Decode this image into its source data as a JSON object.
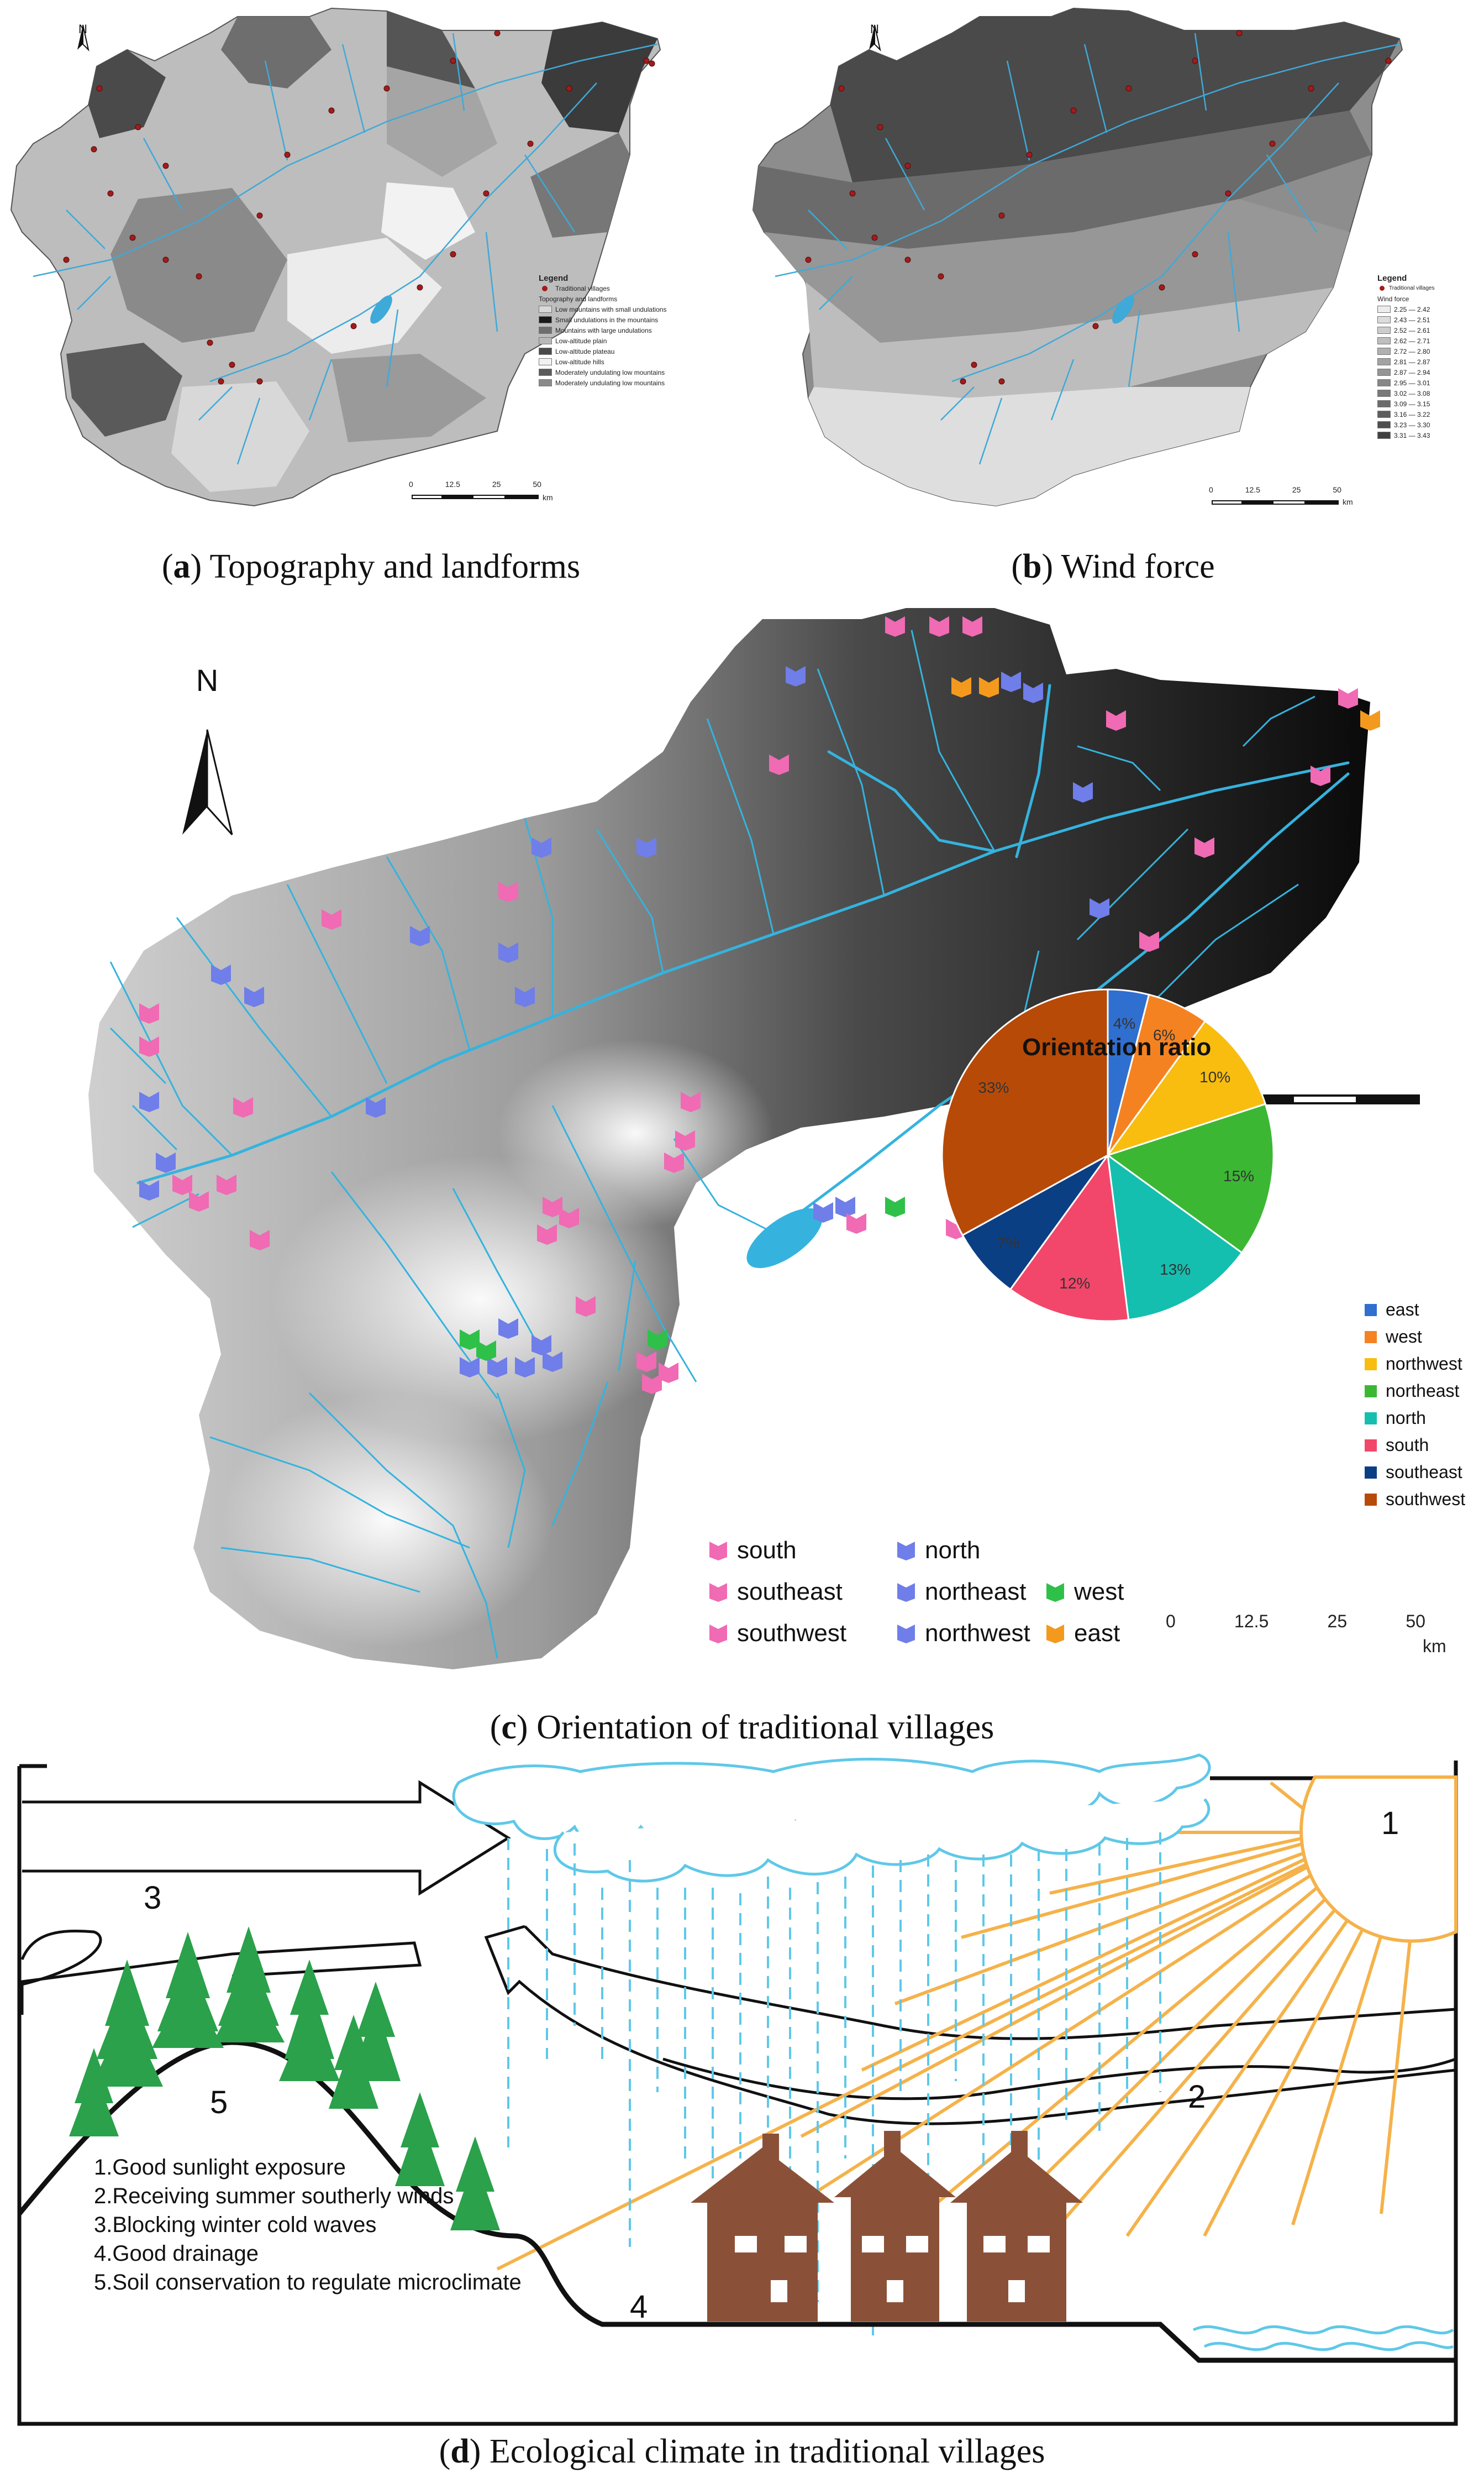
{
  "captions": {
    "a_letter": "a",
    "a_text": " Topography and landforms",
    "b_letter": "b",
    "b_text": " Wind force",
    "c_letter": "c",
    "c_text": " Orientation of traditional villages",
    "d_letter": "d",
    "d_text": " Ecological climate in traditional villages"
  },
  "north": "N",
  "panel_a": {
    "legend_title": "Legend",
    "villages_label": "Traditional villages",
    "category_title": "Topography and landforms",
    "items": [
      {
        "label": "Low mountains with small undulations",
        "color": "#d8d8d8"
      },
      {
        "label": "Small undulations in the mountains",
        "color": "#1a1a1a"
      },
      {
        "label": "Mountains with large undulations",
        "color": "#6e6e6e"
      },
      {
        "label": "Low-altitude plain",
        "color": "#b8b8b8"
      },
      {
        "label": "Low-altitude plateau",
        "color": "#4a4a4a"
      },
      {
        "label": "Low-altitude hills",
        "color": "#f2f2f2"
      },
      {
        "label": "Moderately undulating low mountains",
        "color": "#5a5a5a"
      },
      {
        "label": "Moderately undulating low mountains",
        "color": "#8a8a8a"
      }
    ],
    "scale": [
      "0",
      "12.5",
      "25",
      "50"
    ],
    "scale_unit": "km"
  },
  "panel_b": {
    "legend_title": "Legend",
    "villages_label": "Traditional villages",
    "category_title": "Wind  force",
    "items": [
      {
        "label": "2.25 — 2.42",
        "color": "#ececec"
      },
      {
        "label": "2.43 — 2.51",
        "color": "#dcdcdc"
      },
      {
        "label": "2.52 — 2.61",
        "color": "#cdcdcd"
      },
      {
        "label": "2.62 — 2.71",
        "color": "#bfbfbf"
      },
      {
        "label": "2.72 — 2.80",
        "color": "#b1b1b1"
      },
      {
        "label": "2.81 — 2.87",
        "color": "#a3a3a3"
      },
      {
        "label": "2.87 — 2.94",
        "color": "#959595"
      },
      {
        "label": "2.95 — 3.01",
        "color": "#878787"
      },
      {
        "label": "3.02 — 3.08",
        "color": "#797979"
      },
      {
        "label": "3.09 — 3.15",
        "color": "#6b6b6b"
      },
      {
        "label": "3.16 — 3.22",
        "color": "#5d5d5d"
      },
      {
        "label": "3.23 — 3.30",
        "color": "#4f4f4f"
      },
      {
        "label": "3.31 — 3.43",
        "color": "#414141"
      }
    ],
    "scale": [
      "0",
      "12.5",
      "25",
      "50"
    ],
    "scale_unit": "km"
  },
  "panel_c": {
    "scale": [
      "0",
      "12.5",
      "25",
      "50"
    ],
    "scale_unit": "km",
    "orientation_legend": [
      {
        "label": "south",
        "color": "#f06ab4"
      },
      {
        "label": "north",
        "color": "#6f7ee8"
      },
      {
        "label": "southeast",
        "color": "#f06ab4"
      },
      {
        "label": "northeast",
        "color": "#6f7ee8"
      },
      {
        "label": "west",
        "color": "#2fc04a"
      },
      {
        "label": "southwest",
        "color": "#f06ab4"
      },
      {
        "label": "northwest",
        "color": "#6f7ee8"
      },
      {
        "label": "east",
        "color": "#f39a1e"
      }
    ]
  },
  "chart_data": {
    "type": "pie",
    "title": "Orientation ratio",
    "slices": [
      {
        "label": "east",
        "value": 4,
        "display": "4%",
        "color": "#2f6fd0"
      },
      {
        "label": "west",
        "value": 6,
        "display": "6%",
        "color": "#f58220"
      },
      {
        "label": "northwest",
        "value": 10,
        "display": "10%",
        "color": "#f8bd0f"
      },
      {
        "label": "northeast",
        "value": 15,
        "display": "15%",
        "color": "#3cb734"
      },
      {
        "label": "north",
        "value": 13,
        "display": "13%",
        "color": "#14bfb0"
      },
      {
        "label": "south",
        "value": 12,
        "display": "12%",
        "color": "#f2476a"
      },
      {
        "label": "southeast",
        "value": 7,
        "display": "7%",
        "color": "#0b3f84"
      },
      {
        "label": "southwest",
        "value": 33,
        "display": "33%",
        "color": "#b84a08"
      }
    ]
  },
  "panel_d": {
    "numbers": [
      "1",
      "2",
      "3",
      "4",
      "5"
    ],
    "list": [
      "1.Good sunlight exposure",
      "2.Receiving summer southerly winds",
      "3.Blocking winter cold waves",
      "4.Good drainage",
      "5.Soil conservation to regulate microclimate"
    ],
    "colors": {
      "river": "#3fb3d6",
      "sun": "#f5b24a",
      "house": "#8b5138",
      "tree": "#2aa14a",
      "rain": "#5fc8e8"
    }
  }
}
